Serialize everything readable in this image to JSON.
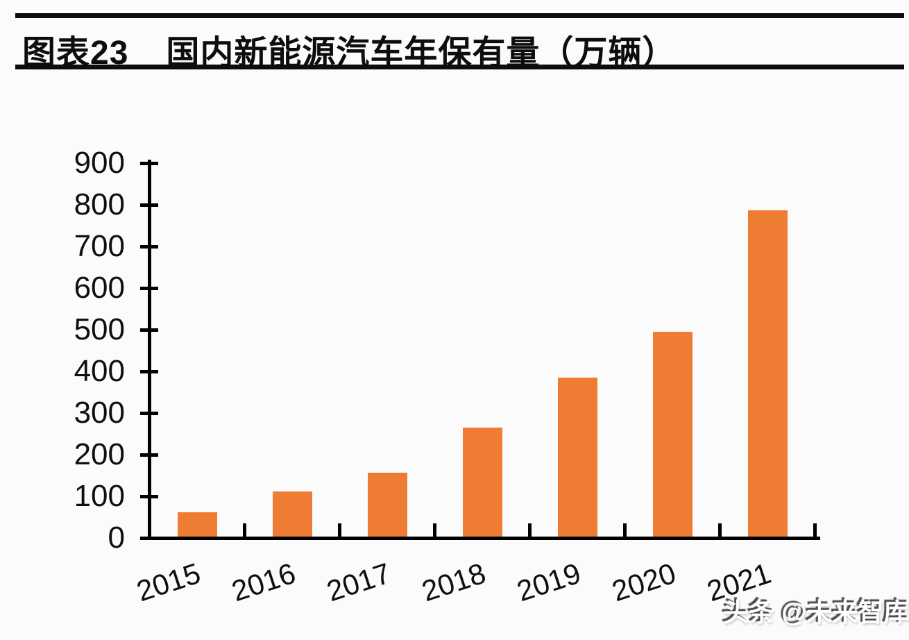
{
  "header": {
    "figure_label": "图表23",
    "title": "国内新能源汽车年保有量（万辆）"
  },
  "watermark": {
    "text": "头条 @未来智库"
  },
  "colors": {
    "bar": "#EF7C33",
    "axis": "#000000",
    "text": "#0F0F0F",
    "title_rule": "#0D0D0D",
    "background": "#FBFBFB",
    "watermark_text": "#FFFFFF"
  },
  "chart_data": {
    "type": "bar",
    "figure_label": "图表23",
    "title": "国内新能源汽车年保有量（万辆）",
    "unit": "万辆",
    "categories": [
      "2015",
      "2016",
      "2017",
      "2018",
      "2019",
      "2020",
      "2021"
    ],
    "values": [
      58,
      109,
      153,
      261,
      381,
      492,
      784
    ],
    "xlabel": "",
    "ylabel": "",
    "ylim": [
      0,
      900
    ],
    "ytick_step": 100,
    "ytick_labels": [
      "0",
      "100",
      "200",
      "300",
      "400",
      "500",
      "600",
      "700",
      "800",
      "900"
    ],
    "grid": false,
    "legend": false,
    "bar_color": "#EF7C33",
    "x_tick_label_rotation_deg": -18
  }
}
